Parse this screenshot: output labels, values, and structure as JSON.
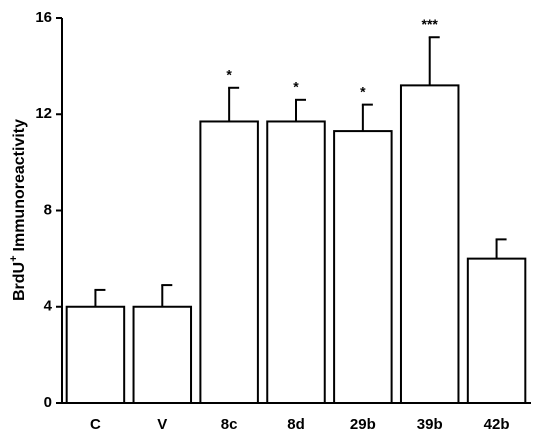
{
  "chart_data": {
    "type": "bar",
    "y_label": {
      "base": "BrdU",
      "sup": "+",
      "rest": "Immunoreactivity"
    },
    "categories": [
      "C",
      "V",
      "8c",
      "8d",
      "29b",
      "39b",
      "42b"
    ],
    "values": [
      4.0,
      4.0,
      11.7,
      11.7,
      11.3,
      13.2,
      6.0
    ],
    "errors": [
      0.7,
      0.9,
      1.4,
      0.9,
      1.1,
      2.0,
      0.8
    ],
    "annotations": [
      null,
      null,
      "*",
      "*",
      "*",
      "***",
      null
    ],
    "color": "#ffffff",
    "ylim": [
      0,
      16
    ],
    "yticks": [
      0,
      4,
      8,
      12,
      16
    ],
    "grid": false
  }
}
